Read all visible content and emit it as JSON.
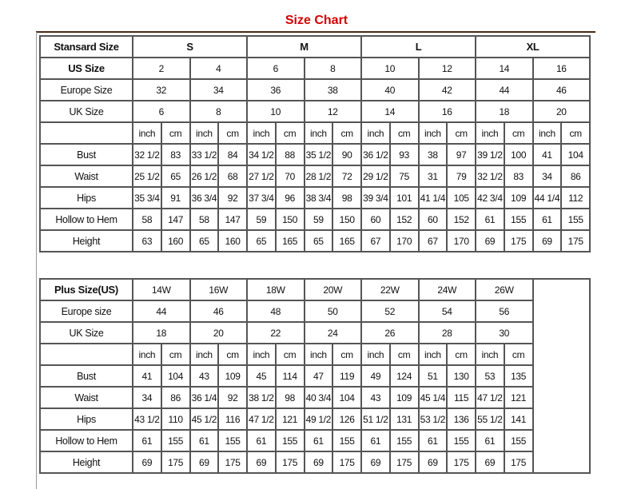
{
  "title": "Size Chart",
  "standard": {
    "header_label": "Stansard Size",
    "groups": [
      "S",
      "M",
      "L",
      "XL"
    ],
    "size_rows": [
      {
        "label": "US Size",
        "values": [
          "2",
          "4",
          "6",
          "8",
          "10",
          "12",
          "14",
          "16"
        ]
      },
      {
        "label": "Europe Size",
        "values": [
          "32",
          "34",
          "36",
          "38",
          "40",
          "42",
          "44",
          "46"
        ]
      },
      {
        "label": "UK Size",
        "values": [
          "6",
          "8",
          "10",
          "12",
          "14",
          "16",
          "18",
          "20"
        ]
      }
    ],
    "unit_labels": [
      "inch",
      "cm"
    ],
    "measure_rows": [
      {
        "label": "Bust",
        "values": [
          "32 1/2",
          "83",
          "33 1/2",
          "84",
          "34 1/2",
          "88",
          "35 1/2",
          "90",
          "36 1/2",
          "93",
          "38",
          "97",
          "39 1/2",
          "100",
          "41",
          "104"
        ]
      },
      {
        "label": "Waist",
        "values": [
          "25 1/2",
          "65",
          "26 1/2",
          "68",
          "27 1/2",
          "70",
          "28 1/2",
          "72",
          "29 1/2",
          "75",
          "31",
          "79",
          "32 1/2",
          "83",
          "34",
          "86"
        ]
      },
      {
        "label": "Hips",
        "values": [
          "35 3/4",
          "91",
          "36 3/4",
          "92",
          "37 3/4",
          "96",
          "38 3/4",
          "98",
          "39 3/4",
          "101",
          "41 1/4",
          "105",
          "42 3/4",
          "109",
          "44 1/4",
          "112"
        ]
      },
      {
        "label": "Hollow to Hem",
        "values": [
          "58",
          "147",
          "58",
          "147",
          "59",
          "150",
          "59",
          "150",
          "60",
          "152",
          "60",
          "152",
          "61",
          "155",
          "61",
          "155"
        ]
      },
      {
        "label": "Height",
        "values": [
          "63",
          "160",
          "65",
          "160",
          "65",
          "165",
          "65",
          "165",
          "67",
          "170",
          "67",
          "170",
          "69",
          "175",
          "69",
          "175"
        ]
      }
    ]
  },
  "plus": {
    "header_label": "Plus Size(US)",
    "sizes": [
      "14W",
      "16W",
      "18W",
      "20W",
      "22W",
      "24W",
      "26W"
    ],
    "size_rows": [
      {
        "label": "Europe size",
        "values": [
          "44",
          "46",
          "48",
          "50",
          "52",
          "54",
          "56"
        ]
      },
      {
        "label": "UK Size",
        "values": [
          "18",
          "20",
          "22",
          "24",
          "26",
          "28",
          "30"
        ]
      }
    ],
    "unit_labels": [
      "inch",
      "cm"
    ],
    "measure_rows": [
      {
        "label": "Bust",
        "values": [
          "41",
          "104",
          "43",
          "109",
          "45",
          "114",
          "47",
          "119",
          "49",
          "124",
          "51",
          "130",
          "53",
          "135"
        ]
      },
      {
        "label": "Waist",
        "values": [
          "34",
          "86",
          "36 1/4",
          "92",
          "38 1/2",
          "98",
          "40 3/4",
          "104",
          "43",
          "109",
          "45 1/4",
          "115",
          "47 1/2",
          "121"
        ]
      },
      {
        "label": "Hips",
        "values": [
          "43 1/2",
          "110",
          "45 1/2",
          "116",
          "47 1/2",
          "121",
          "49 1/2",
          "126",
          "51 1/2",
          "131",
          "53 1/2",
          "136",
          "55 1/2",
          "141"
        ]
      },
      {
        "label": "Hollow to Hem",
        "values": [
          "61",
          "155",
          "61",
          "155",
          "61",
          "155",
          "61",
          "155",
          "61",
          "155",
          "61",
          "155",
          "61",
          "155"
        ]
      },
      {
        "label": "Height",
        "values": [
          "69",
          "175",
          "69",
          "175",
          "69",
          "175",
          "69",
          "175",
          "69",
          "175",
          "69",
          "175",
          "69",
          "175"
        ]
      }
    ]
  }
}
